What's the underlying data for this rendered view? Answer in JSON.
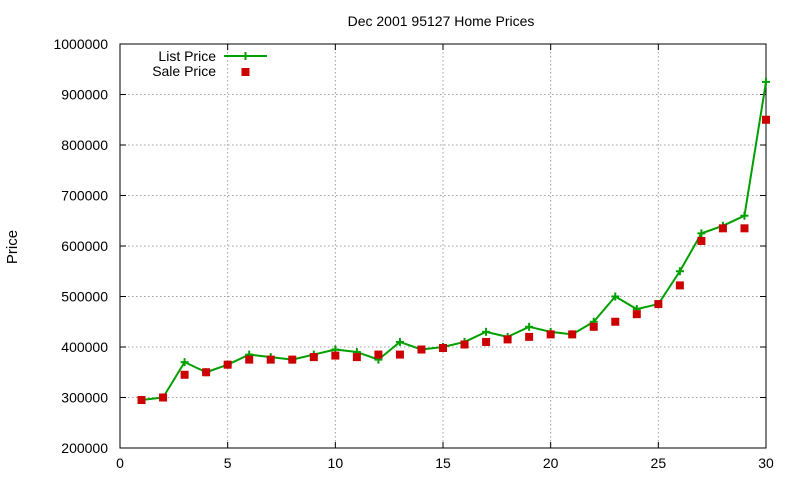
{
  "chart_data": {
    "type": "line",
    "title": "Dec 2001 95127 Home Prices",
    "xlabel": "",
    "ylabel": "Price",
    "xlim": [
      0,
      30
    ],
    "ylim": [
      200000,
      1000000
    ],
    "x_ticks": [
      0,
      5,
      10,
      15,
      20,
      25,
      30
    ],
    "y_ticks": [
      200000,
      300000,
      400000,
      500000,
      600000,
      700000,
      800000,
      900000,
      1000000
    ],
    "grid": true,
    "legend_position": "top-left",
    "x": [
      1,
      2,
      3,
      4,
      5,
      6,
      7,
      8,
      9,
      10,
      11,
      12,
      13,
      14,
      15,
      16,
      17,
      18,
      19,
      20,
      21,
      22,
      23,
      24,
      25,
      26,
      27,
      28,
      29,
      30
    ],
    "series": [
      {
        "name": "List Price",
        "style": "line-with-plus-markers",
        "color": "#00a000",
        "values": [
          295000,
          300000,
          370000,
          350000,
          365000,
          385000,
          380000,
          375000,
          385000,
          395000,
          390000,
          375000,
          410000,
          395000,
          400000,
          410000,
          430000,
          420000,
          440000,
          430000,
          425000,
          450000,
          500000,
          475000,
          485000,
          550000,
          625000,
          640000,
          660000,
          925000
        ]
      },
      {
        "name": "Sale Price",
        "style": "square-markers",
        "color": "#cc0000",
        "values": [
          295000,
          300000,
          345000,
          350000,
          365000,
          375000,
          375000,
          375000,
          380000,
          383000,
          380000,
          385000,
          385000,
          395000,
          398000,
          405000,
          410000,
          415000,
          420000,
          425000,
          425000,
          440000,
          450000,
          465000,
          485000,
          522000,
          610000,
          635000,
          635000,
          850000
        ]
      }
    ]
  }
}
